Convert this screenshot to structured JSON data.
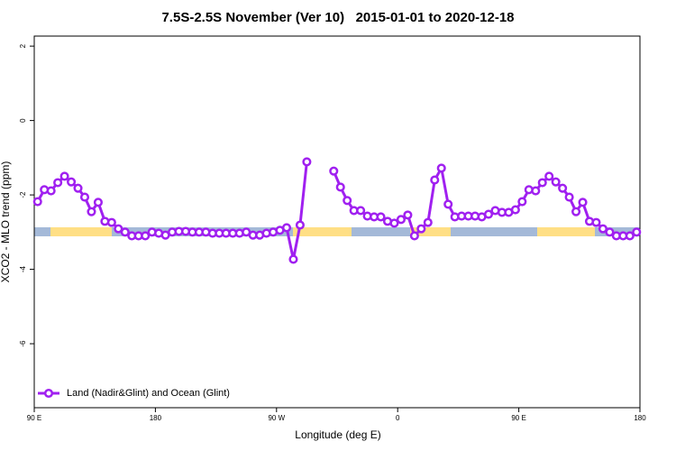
{
  "chart_data": {
    "type": "line",
    "title": "7.5S-2.5S November (Ver 10)   2015-01-01 to 2020-12-18",
    "x_label": "Longitude (deg E)",
    "y_label": "XCO2 - MLO trend (ppm)",
    "x": [
      92.5,
      97.5,
      102.5,
      107.5,
      112.5,
      117.5,
      122.5,
      127.5,
      132.5,
      137.5,
      142.5,
      147.5,
      152.5,
      157.5,
      162.5,
      167.5,
      172.5,
      177.5,
      182.5,
      187.5,
      192.5,
      197.5,
      202.5,
      207.5,
      212.5,
      217.5,
      222.5,
      227.5,
      232.5,
      237.5,
      242.5,
      247.5,
      252.5,
      257.5,
      262.5,
      267.5,
      272.5,
      277.5,
      282.5,
      287.5,
      292.5,
      297.5,
      302.5,
      307.5,
      312.5,
      317.5,
      322.5,
      327.5,
      332.5,
      337.5,
      342.5,
      347.5,
      352.5,
      357.5,
      362.5,
      367.5,
      372.5,
      377.5,
      382.5,
      387.5,
      392.5,
      397.5,
      402.5,
      407.5,
      412.5,
      417.5,
      422.5,
      427.5,
      432.5,
      437.5,
      442.5,
      447.5,
      452.5,
      457.5,
      462.5,
      467.5,
      472.5,
      477.5,
      482.5,
      487.5,
      492.5,
      497.5,
      502.5,
      507.5,
      512.5,
      517.5,
      522.5,
      527.5,
      532.5,
      537.5
    ],
    "series": [
      {
        "name": "Land (Nadir&Glint) and Ocean (Glint)",
        "color": "#a020f0",
        "values": [
          -2.18,
          -1.86,
          -1.89,
          -1.67,
          -1.5,
          -1.65,
          -1.82,
          -2.06,
          -2.45,
          -2.2,
          -2.71,
          -2.74,
          -2.91,
          -3.0,
          -3.1,
          -3.1,
          -3.1,
          -3.0,
          -3.03,
          -3.08,
          -3.0,
          -2.98,
          -2.98,
          -3.0,
          -3.0,
          -3.0,
          -3.03,
          -3.03,
          -3.03,
          -3.03,
          -3.03,
          -3.0,
          -3.08,
          -3.08,
          -3.03,
          -3.0,
          -2.95,
          -2.88,
          -3.73,
          -2.81,
          -1.11,
          null,
          null,
          null,
          -1.36,
          -1.79,
          -2.15,
          -2.42,
          -2.42,
          -2.57,
          -2.59,
          -2.59,
          -2.71,
          -2.76,
          -2.66,
          -2.54,
          -3.1,
          -2.91,
          -2.74,
          -1.6,
          -1.28,
          -2.25,
          -2.59,
          -2.57,
          -2.57,
          -2.57,
          -2.59,
          -2.52,
          -2.42,
          -2.47,
          -2.47,
          -2.4,
          -2.18,
          -1.86,
          -1.89,
          -1.67,
          -1.5,
          -1.65,
          -1.82,
          -2.06,
          -2.45,
          -2.2,
          -2.71,
          -2.74,
          -2.91,
          -3.0,
          -3.1,
          -3.1,
          -3.1,
          -3.0
        ]
      }
    ],
    "xlim": [
      90,
      540
    ],
    "xticks": [
      {
        "value": 90,
        "label": "90 E"
      },
      {
        "value": 180,
        "label": "180"
      },
      {
        "value": 270,
        "label": "90 W"
      },
      {
        "value": 360,
        "label": "0"
      },
      {
        "value": 450,
        "label": "90 E"
      },
      {
        "value": 540,
        "label": "180"
      }
    ],
    "ylim": [
      -7.72,
      2.27
    ],
    "yticks": [
      -6,
      -4,
      -2,
      0,
      2
    ],
    "grid": false,
    "legend": "bottomleft"
  }
}
